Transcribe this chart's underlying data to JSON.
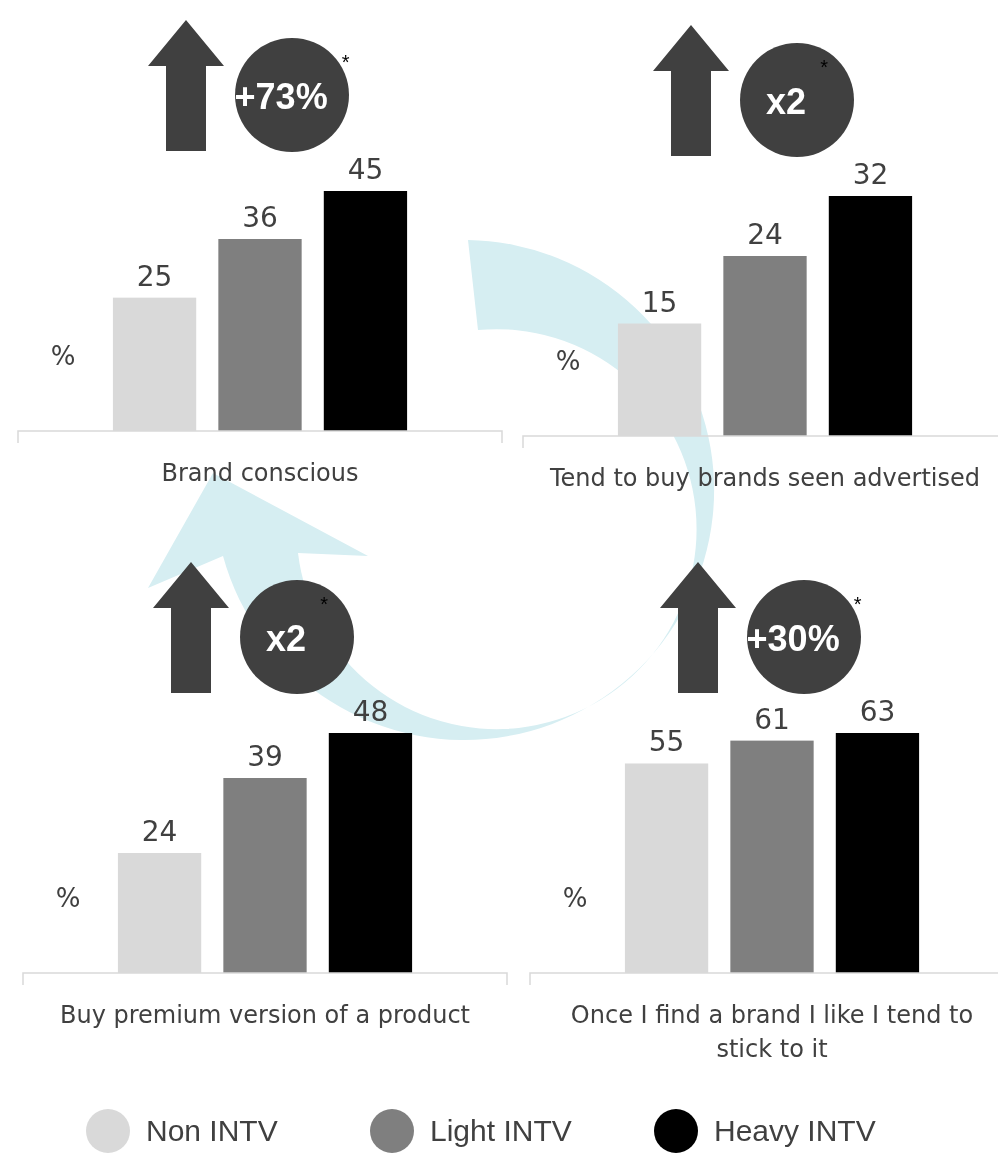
{
  "chart_data": [
    {
      "type": "bar",
      "stacked": true,
      "categories": [
        null,
        null,
        null
      ],
      "xlabel": "Brand conscious",
      "ylabel": "%",
      "data_labels": true,
      "annotations": [
        "+73%$^{*}$"
      ],
      "series": [
        {
          "color": "#d9d9d9",
          "values": [
            25,
            null,
            null
          ]
        },
        {
          "color": "#7f7f7f",
          "values": [
            null,
            36,
            null
          ]
        },
        {
          "color": "#000000",
          "values": [
            null,
            null,
            45
          ]
        }
      ]
    },
    {
      "type": "bar",
      "stacked": true,
      "categories": [
        null,
        null,
        null
      ],
      "xlabel": "Tend to buy brands seen advertised",
      "ylabel": "%",
      "data_labels": true,
      "annotations": [
        "x2$^{*}$"
      ],
      "series": [
        {
          "color": "#d9d9d9",
          "values": [
            15,
            null,
            null
          ]
        },
        {
          "color": "#7f7f7f",
          "values": [
            null,
            24,
            null
          ]
        },
        {
          "color": "#000000",
          "values": [
            null,
            null,
            32
          ]
        }
      ]
    },
    {
      "type": "bar",
      "stacked": true,
      "categories": [
        null,
        null,
        null
      ],
      "xlabel": "Buy premium version of a product",
      "ylabel": "%",
      "data_labels": true,
      "annotations": [
        "x2$^{*}$"
      ],
      "series": [
        {
          "color": "#d9d9d9",
          "values": [
            24,
            null,
            null
          ]
        },
        {
          "color": "#7f7f7f",
          "values": [
            null,
            39,
            null
          ]
        },
        {
          "color": "#000000",
          "values": [
            null,
            null,
            48
          ]
        }
      ]
    },
    {
      "type": "bar",
      "stacked": true,
      "categories": [
        null,
        null,
        null
      ],
      "xlabel": "Once I find a brand I like I tend to stick to it",
      "ylabel": "%",
      "data_labels": true,
      "annotations": [
        "+30%$^{*}$"
      ],
      "legend": "bottom",
      "series": [
        {
          "name": "Non INTV",
          "color": "#d9d9d9",
          "values": [
            55,
            null,
            null
          ]
        },
        {
          "name": "Light INTV",
          "color": "#7f7f7f",
          "values": [
            null,
            61,
            null
          ]
        },
        {
          "name": "Heavy INTV",
          "color": "#000000",
          "values": [
            null,
            null,
            63
          ]
        }
      ]
    }
  ]
}
